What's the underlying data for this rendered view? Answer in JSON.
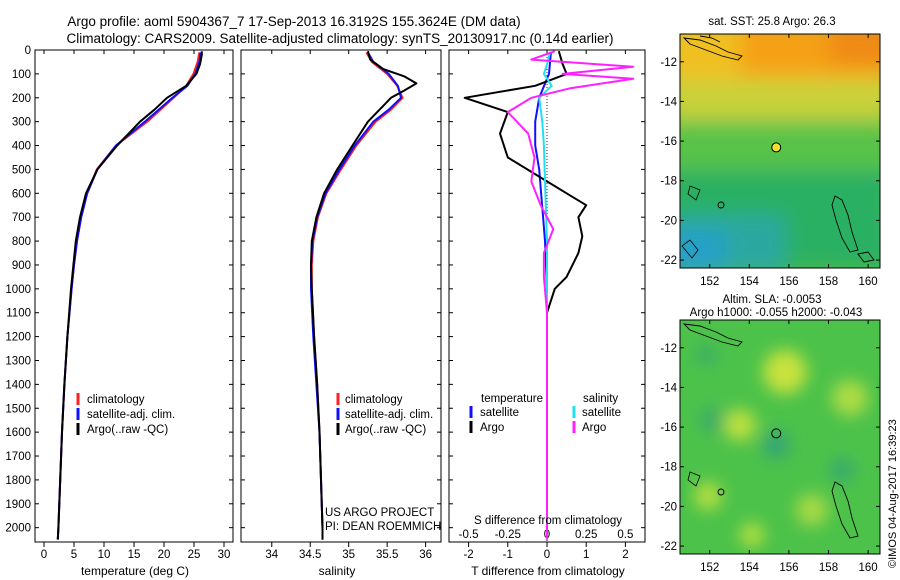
{
  "header": {
    "title1": "Argo profile: aoml 5904367_7 17-Sep-2013 16.3192S 155.3624E (DM data)",
    "title2": "Climatology: CARS2009. Satellite-adjusted climatology: synTS_20130917.nc (0.14d earlier)"
  },
  "colors": {
    "climatology": "#ff2020",
    "satellite": "#1010ff",
    "argo": "#000000",
    "salinity_satellite": "#22e0f0",
    "salinity_argo": "#ff20ff"
  },
  "depth_axis": {
    "ticks": [
      0,
      100,
      200,
      300,
      400,
      500,
      600,
      700,
      800,
      900,
      1000,
      1100,
      1200,
      1300,
      1400,
      1500,
      1600,
      1700,
      1800,
      1900,
      2000
    ],
    "range": [
      0,
      2060
    ]
  },
  "chart_data": [
    {
      "type": "line",
      "id": "temperature",
      "xlabel": "temperature (deg C)",
      "xlim": [
        -1.5,
        31.5
      ],
      "xticks": [
        0,
        5,
        10,
        15,
        20,
        25,
        30
      ],
      "legend": [
        "climatology",
        "satellite-adj. clim.",
        "Argo(..raw -QC)"
      ],
      "series": [
        {
          "name": "climatology",
          "color_key": "climatology",
          "depth": [
            10,
            50,
            100,
            150,
            200,
            300,
            400,
            500,
            600,
            700,
            800,
            900,
            1000,
            1200,
            1400,
            1600,
            1800,
            2000,
            2050
          ],
          "values": [
            25.9,
            25.6,
            24.9,
            23.7,
            21.6,
            17.2,
            12.0,
            8.8,
            7.2,
            6.2,
            5.5,
            5.0,
            4.6,
            3.9,
            3.4,
            3.0,
            2.7,
            2.4,
            2.3
          ]
        },
        {
          "name": "satellite-adj. clim.",
          "color_key": "satellite",
          "depth": [
            10,
            50,
            100,
            150,
            200,
            300,
            400,
            500,
            600,
            700,
            800,
            900,
            1000,
            1200,
            1400,
            1600,
            1800,
            2000,
            2050
          ],
          "values": [
            26.1,
            25.9,
            25.2,
            23.9,
            21.4,
            16.8,
            12.0,
            8.9,
            7.2,
            6.2,
            5.5,
            5.0,
            4.6,
            3.9,
            3.4,
            3.0,
            2.7,
            2.4,
            2.3
          ]
        },
        {
          "name": "Argo(..raw -QC)",
          "color_key": "argo",
          "depth": [
            5,
            20,
            60,
            100,
            150,
            200,
            250,
            300,
            400,
            500,
            600,
            700,
            800,
            900,
            1000,
            1200,
            1400,
            1600,
            1800,
            2000,
            2050
          ],
          "values": [
            26.3,
            26.3,
            26.0,
            25.4,
            23.7,
            20.5,
            18.4,
            16.0,
            12.2,
            8.9,
            7.0,
            6.0,
            5.3,
            4.9,
            4.5,
            3.9,
            3.4,
            3.0,
            2.7,
            2.4,
            2.3
          ]
        }
      ]
    },
    {
      "type": "line",
      "id": "salinity",
      "xlabel": "salinity",
      "xlim": [
        33.6,
        36.2
      ],
      "xticks": [
        34,
        34.5,
        35,
        35.5,
        36
      ],
      "xticklabels": [
        "34",
        "34.5",
        "35",
        "35.5",
        "36"
      ],
      "legend": [
        "climatology",
        "satellite-adj. clim.",
        "Argo(..raw -QC)"
      ],
      "annotation1": "US ARGO PROJECT",
      "annotation2": "PI: DEAN ROEMMICH",
      "series": [
        {
          "name": "climatology",
          "color_key": "climatology",
          "depth": [
            10,
            50,
            100,
            150,
            200,
            250,
            300,
            400,
            500,
            600,
            700,
            800,
            900,
            1000,
            1200,
            1400,
            1600,
            1800,
            2000,
            2050
          ],
          "values": [
            35.23,
            35.3,
            35.5,
            35.63,
            35.7,
            35.55,
            35.35,
            35.1,
            34.9,
            34.71,
            34.6,
            34.54,
            34.52,
            34.52,
            34.55,
            34.59,
            34.62,
            34.64,
            34.66,
            34.66
          ]
        },
        {
          "name": "satellite-adj. clim.",
          "color_key": "satellite",
          "depth": [
            10,
            50,
            100,
            150,
            200,
            250,
            300,
            400,
            500,
            600,
            700,
            800,
            900,
            1000,
            1200,
            1400,
            1600,
            1800,
            2000,
            2050
          ],
          "values": [
            35.25,
            35.32,
            35.52,
            35.64,
            35.68,
            35.52,
            35.32,
            35.08,
            34.88,
            34.7,
            34.59,
            34.53,
            34.51,
            34.51,
            34.54,
            34.58,
            34.62,
            34.64,
            34.66,
            34.66
          ]
        },
        {
          "name": "Argo(..raw -QC)",
          "color_key": "argo",
          "depth": [
            5,
            40,
            80,
            110,
            140,
            170,
            200,
            250,
            300,
            400,
            500,
            600,
            700,
            800,
            900,
            1000,
            1200,
            1400,
            1600,
            1800,
            2000,
            2050
          ],
          "values": [
            35.25,
            35.28,
            35.45,
            35.72,
            35.88,
            35.72,
            35.55,
            35.4,
            35.25,
            35.05,
            34.85,
            34.68,
            34.58,
            34.52,
            34.51,
            34.52,
            34.55,
            34.59,
            34.62,
            34.64,
            34.66,
            34.66
          ]
        }
      ]
    },
    {
      "type": "line",
      "id": "difference",
      "xlabel": "T difference from climatology",
      "xlim_t": [
        -2.5,
        2.5
      ],
      "xticks_t": [
        -2,
        -1,
        0,
        1,
        2
      ],
      "top_label": "S difference from climatology",
      "xticks_s": [
        -0.5,
        -0.25,
        0,
        0.25,
        0.5
      ],
      "xticklabels_s": [
        "-0.5",
        "-0.25",
        "0",
        "0.25",
        "0.5"
      ],
      "legend": {
        "temperature": "temperature",
        "salinity": "salinity",
        "satellite": "satellite",
        "argo": "Argo"
      },
      "series": [
        {
          "name": "T satellite",
          "color_key": "satellite",
          "depth": [
            10,
            100,
            200,
            300,
            400,
            500,
            600,
            700,
            800,
            1000,
            1500,
            2000,
            2050
          ],
          "values": [
            0.1,
            0.05,
            -0.2,
            -0.3,
            -0.3,
            -0.2,
            -0.15,
            -0.1,
            -0.05,
            0,
            0,
            0,
            0
          ]
        },
        {
          "name": "T Argo",
          "color_key": "argo",
          "depth": [
            5,
            60,
            100,
            150,
            200,
            260,
            350,
            450,
            530,
            600,
            650,
            700,
            780,
            850,
            950,
            1000,
            1100
          ],
          "values": [
            0.3,
            0.4,
            0.5,
            -0.3,
            -2.1,
            -1.0,
            -1.2,
            -1.0,
            -0.2,
            0.5,
            1.0,
            0.8,
            0.9,
            0.8,
            0.5,
            0.2,
            0
          ]
        },
        {
          "name": "S satellite",
          "color_key": "salinity_satellite",
          "depth": [
            10,
            60,
            100,
            150,
            200,
            300,
            400,
            600,
            800,
            1000,
            1500,
            2000,
            2050
          ],
          "values": [
            0.02,
            0.0,
            -0.02,
            0.03,
            -0.05,
            -0.03,
            -0.02,
            -0.01,
            0,
            0,
            0,
            0,
            0
          ]
        },
        {
          "name": "S Argo",
          "color_key": "salinity_argo",
          "depth": [
            5,
            40,
            70,
            100,
            120,
            160,
            200,
            260,
            350,
            450,
            550,
            650,
            750,
            850,
            950,
            1100,
            1300,
            1500,
            2000,
            2050
          ],
          "values": [
            0.05,
            -0.1,
            0.55,
            0.1,
            0.55,
            0.15,
            -0.1,
            -0.25,
            -0.12,
            -0.08,
            -0.1,
            -0.04,
            0.04,
            -0.02,
            -0.02,
            0,
            0,
            0,
            0,
            0
          ]
        }
      ]
    }
  ],
  "map_sst": {
    "title": "sat. SST: 25.8 Argo: 26.3",
    "yticks": [
      -12,
      -14,
      -16,
      -18,
      -20,
      -22
    ],
    "yticklabels": [
      "-12",
      "-14",
      "-16",
      "-18",
      "-20",
      "-22"
    ],
    "xticks": [
      152,
      154,
      156,
      158,
      160
    ],
    "xticklabels": [
      "152",
      "154",
      "156",
      "158",
      "160"
    ],
    "lon_range": [
      150.5,
      160.6
    ],
    "lat_range": [
      -22.4,
      -10.6
    ],
    "float_lon": 155.36,
    "float_lat": -16.32
  },
  "map_sla": {
    "title1": "Altim. SLA: -0.0053",
    "title2": "Argo h1000: -0.055 h2000: -0.043",
    "yticks": [
      -12,
      -14,
      -16,
      -18,
      -20,
      -22
    ],
    "yticklabels": [
      "-12",
      "-14",
      "-16",
      "-18",
      "-20",
      "-22"
    ],
    "xticks": [
      152,
      154,
      156,
      158,
      160
    ],
    "xticklabels": [
      "152",
      "154",
      "156",
      "158",
      "160"
    ],
    "lon_range": [
      150.5,
      160.6
    ],
    "lat_range": [
      -22.4,
      -10.6
    ],
    "float_lon": 155.36,
    "float_lat": -16.32
  },
  "credit": "©IMOS 04-Aug-2017 16:39:23"
}
